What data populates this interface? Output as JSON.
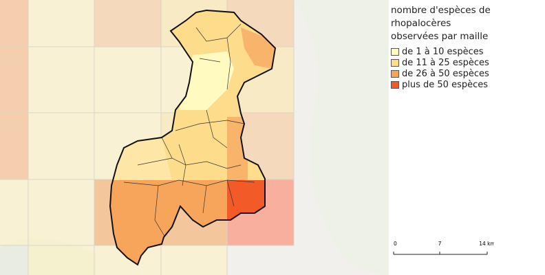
{
  "legend": {
    "title_lines": [
      "nombre d'espèces de",
      "rhopalocères",
      "observées par maille"
    ],
    "items": [
      {
        "label": "de 1 à 10 espèces",
        "color": "#fffbc0"
      },
      {
        "label": "de 11 à 25 espèces",
        "color": "#fddc8c"
      },
      {
        "label": "de 26 à 50 espèces",
        "color": "#f7a55a"
      },
      {
        "label": "plus de 50 espèces",
        "color": "#f25a28"
      }
    ]
  },
  "scale_bar": {
    "labels": [
      "0",
      "7",
      "14 km"
    ]
  }
}
